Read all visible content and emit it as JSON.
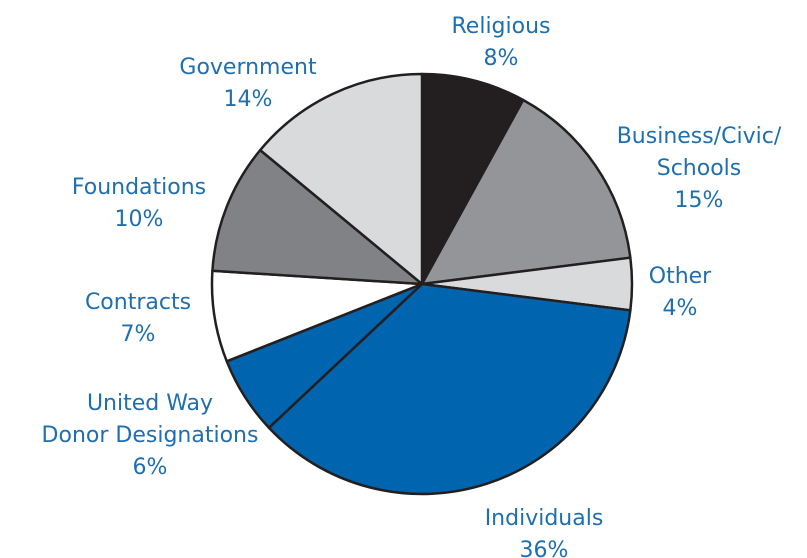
{
  "chart_data": {
    "type": "pie",
    "title": "",
    "label_color": "#1f6fb0",
    "slices": [
      {
        "name": "Religious",
        "value": 8,
        "value_label": "8%",
        "color": "#231f20"
      },
      {
        "name": "Business/Civic/ Schools",
        "label_lines": [
          "Business/Civic/",
          "Schools"
        ],
        "value": 15,
        "value_label": "15%",
        "color": "#939598"
      },
      {
        "name": "Other",
        "value": 4,
        "value_label": "4%",
        "color": "#d9dadc"
      },
      {
        "name": "Individuals",
        "value": 36,
        "value_label": "36%",
        "color": "#0064af"
      },
      {
        "name": "United Way Donor Designations",
        "label_lines": [
          "United Way",
          "Donor Designations"
        ],
        "value": 6,
        "value_label": "6%",
        "color": "#0064af"
      },
      {
        "name": "Contracts",
        "value": 7,
        "value_label": "7%",
        "color": "#ffffff"
      },
      {
        "name": "Foundations",
        "value": 10,
        "value_label": "10%",
        "color": "#808285"
      },
      {
        "name": "Government",
        "value": 14,
        "value_label": "14%",
        "color": "#d9dadc"
      }
    ]
  }
}
